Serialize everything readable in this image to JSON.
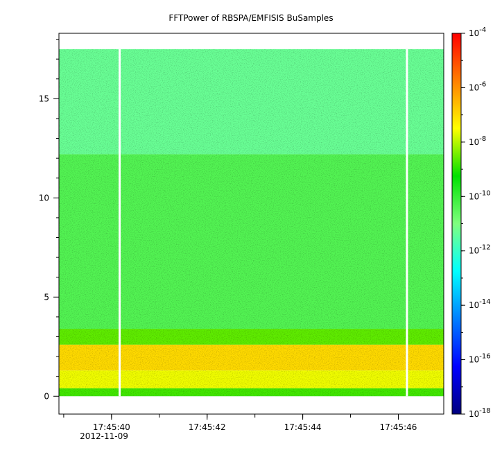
{
  "chart_data": {
    "type": "heatmap",
    "title": "FFTPower of RBSPA/EMFISIS  BuSamples",
    "xlabel": "",
    "ylabel": "",
    "x_ticks": [
      {
        "value": 40,
        "label": "17:45:40"
      },
      {
        "value": 42,
        "label": "17:45:42"
      },
      {
        "value": 44,
        "label": "17:45:44"
      },
      {
        "value": 46,
        "label": "17:45:46"
      }
    ],
    "x_date_label": "2012-11-09",
    "xlim": [
      38.9,
      46.95
    ],
    "y_ticks": [
      0,
      5,
      10,
      15
    ],
    "ylim": [
      -0.9,
      18.3
    ],
    "y_data_range": [
      0,
      17.5
    ],
    "gaps_x": [
      40.17,
      46.18
    ],
    "colorbar": {
      "scale": "log",
      "range": [
        1e-18,
        0.0001
      ],
      "ticks": [
        {
          "exp": -4,
          "base": "10",
          "sup": "-4"
        },
        {
          "exp": -6,
          "base": "10",
          "sup": "-6"
        },
        {
          "exp": -8,
          "base": "10",
          "sup": "-8"
        },
        {
          "exp": -10,
          "base": "10",
          "sup": "-10"
        },
        {
          "exp": -12,
          "base": "10",
          "sup": "-12"
        },
        {
          "exp": -14,
          "base": "10",
          "sup": "-14"
        },
        {
          "exp": -16,
          "base": "10",
          "sup": "-16"
        },
        {
          "exp": -18,
          "base": "10",
          "sup": "-18"
        }
      ],
      "colors": [
        "#00007f",
        "#0000ff",
        "#007fff",
        "#00ffff",
        "#7fff7f",
        "#00e000",
        "#ffff00",
        "#ff7f00",
        "#ff0000"
      ]
    },
    "bands": [
      {
        "y0": 12.2,
        "y1": 17.5,
        "log_power": -11.3
      },
      {
        "y0": 3.4,
        "y1": 12.2,
        "log_power": -10.4
      },
      {
        "y0": 2.6,
        "y1": 3.4,
        "log_power": -8.6
      },
      {
        "y0": 1.3,
        "y1": 2.6,
        "log_power": -7.0
      },
      {
        "y0": 0.4,
        "y1": 1.3,
        "log_power": -7.6
      },
      {
        "y0": 0.0,
        "y1": 0.4,
        "log_power": -8.8
      }
    ]
  }
}
